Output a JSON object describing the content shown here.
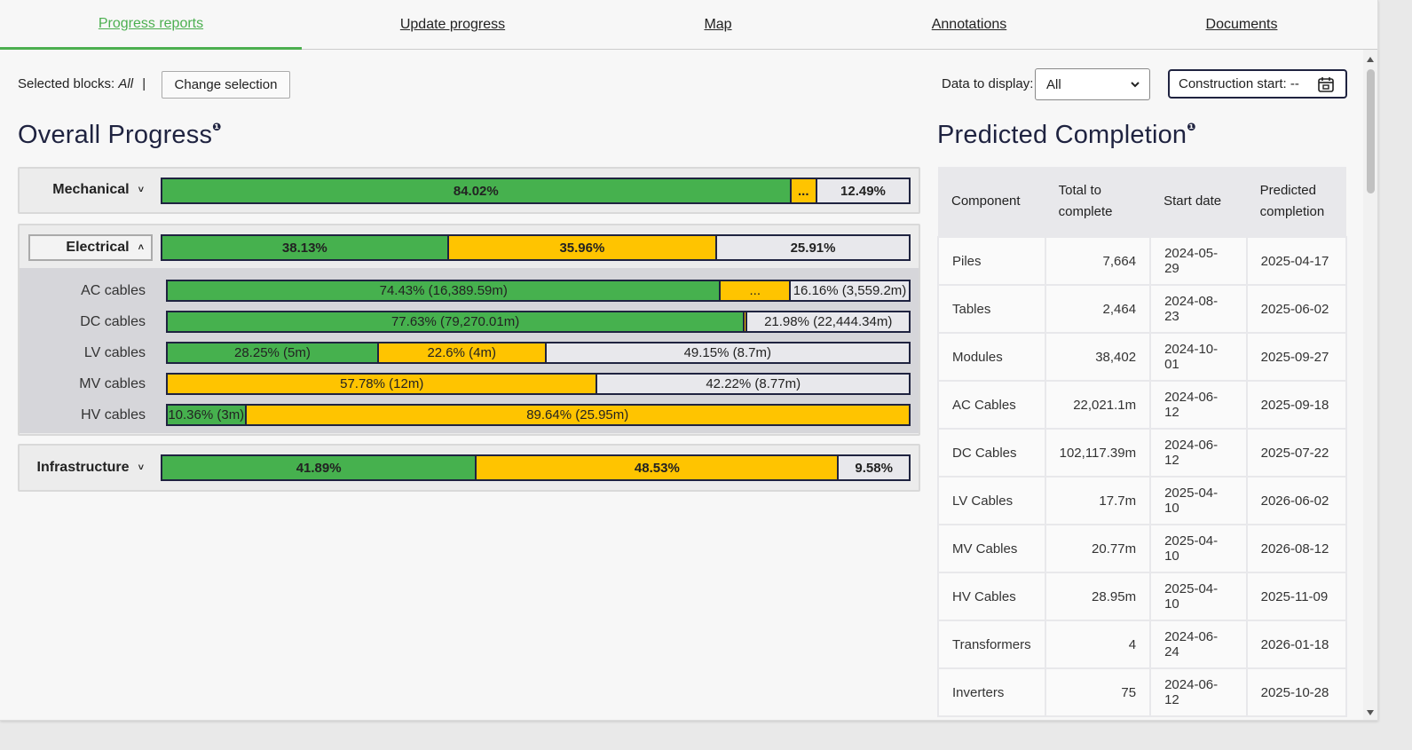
{
  "tabs": [
    {
      "label": "Progress reports",
      "active": true
    },
    {
      "label": "Update progress"
    },
    {
      "label": "Map"
    },
    {
      "label": "Annotations"
    },
    {
      "label": "Documents"
    }
  ],
  "toolbar": {
    "selected_blocks_label": "Selected blocks:",
    "selected_blocks_value": "All",
    "separator": "|",
    "change_selection": "Change selection",
    "data_to_display_label": "Data to display:",
    "data_to_display_value": "All",
    "construction_start": "Construction start: --"
  },
  "overall": {
    "title": "Overall Progress",
    "info_marker": "❶",
    "groups": [
      {
        "name": "Mechanical",
        "caret": "˅",
        "segments": [
          {
            "type": "complete",
            "label": "84.02%",
            "value": 84.02
          },
          {
            "type": "in-progress",
            "label": "...",
            "value": 3.49
          },
          {
            "type": "remaining",
            "label": "12.49%",
            "value": 12.49
          }
        ]
      },
      {
        "name": "Electrical",
        "caret": "˄",
        "segments": [
          {
            "type": "complete",
            "label": "38.13%",
            "value": 38.13
          },
          {
            "type": "in-progress",
            "label": "35.96%",
            "value": 35.96
          },
          {
            "type": "remaining",
            "label": "25.91%",
            "value": 25.91
          }
        ],
        "children": [
          {
            "name": "AC cables",
            "segments": [
              {
                "type": "complete",
                "label": "74.43% (16,389.59m)",
                "value": 74.43
              },
              {
                "type": "in-progress",
                "label": "...",
                "value": 9.41
              },
              {
                "type": "remaining",
                "label": "16.16% (3,559.2m)",
                "value": 16.16
              }
            ]
          },
          {
            "name": "DC cables",
            "segments": [
              {
                "type": "complete",
                "label": "77.63% (79,270.01m)",
                "value": 77.63
              },
              {
                "type": "in-progress",
                "label": "",
                "value": 0.39
              },
              {
                "type": "remaining",
                "label": "21.98% (22,444.34m)",
                "value": 21.98
              }
            ]
          },
          {
            "name": "LV cables",
            "segments": [
              {
                "type": "complete",
                "label": "28.25% (5m)",
                "value": 28.25
              },
              {
                "type": "in-progress",
                "label": "22.6% (4m)",
                "value": 22.6
              },
              {
                "type": "remaining",
                "label": "49.15% (8.7m)",
                "value": 49.15
              }
            ]
          },
          {
            "name": "MV cables",
            "segments": [
              {
                "type": "in-progress",
                "label": "57.78% (12m)",
                "value": 57.78
              },
              {
                "type": "remaining",
                "label": "42.22% (8.77m)",
                "value": 42.22
              }
            ]
          },
          {
            "name": "HV cables",
            "segments": [
              {
                "type": "complete",
                "label": "10.36% (3m)",
                "value": 10.36
              },
              {
                "type": "in-progress",
                "label": "89.64% (25.95m)",
                "value": 89.64
              }
            ]
          }
        ]
      },
      {
        "name": "Infrastructure",
        "caret": "˅",
        "segments": [
          {
            "type": "complete",
            "label": "41.89%",
            "value": 41.89
          },
          {
            "type": "in-progress",
            "label": "48.53%",
            "value": 48.53
          },
          {
            "type": "remaining",
            "label": "9.58%",
            "value": 9.58
          }
        ]
      }
    ]
  },
  "predicted": {
    "title": "Predicted Completion",
    "info_marker": "❶",
    "headers": [
      "Component",
      "Total to complete",
      "Start date",
      "Predicted completion"
    ],
    "rows": [
      [
        "Piles",
        "7,664",
        "2024-05-29",
        "2025-04-17"
      ],
      [
        "Tables",
        "2,464",
        "2024-08-23",
        "2025-06-02"
      ],
      [
        "Modules",
        "38,402",
        "2024-10-01",
        "2025-09-27"
      ],
      [
        "AC Cables",
        "22,021.1m",
        "2024-06-12",
        "2025-09-18"
      ],
      [
        "DC Cables",
        "102,117.39m",
        "2024-06-12",
        "2025-07-22"
      ],
      [
        "LV Cables",
        "17.7m",
        "2025-04-10",
        "2026-06-02"
      ],
      [
        "MV Cables",
        "20.77m",
        "2025-04-10",
        "2026-08-12"
      ],
      [
        "HV Cables",
        "28.95m",
        "2025-04-10",
        "2025-11-09"
      ],
      [
        "Transformers",
        "4",
        "2024-06-24",
        "2026-01-18"
      ],
      [
        "Inverters",
        "75",
        "2024-06-12",
        "2025-10-28"
      ]
    ]
  },
  "colors": {
    "complete": "#46b14e",
    "in_progress": "#ffc400",
    "remaining": "#e8e8ec",
    "active_tab": "#4caf50",
    "heading": "#1f2340"
  }
}
